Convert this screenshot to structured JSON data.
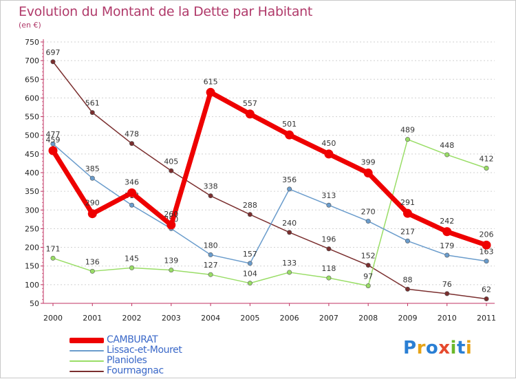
{
  "title": "Evolution du Montant de la Dette par Habitant",
  "subtitle": "(en €)",
  "logo": {
    "text": "Proxiti",
    "letter_colors": [
      "#2a7fd4",
      "#e6a317",
      "#2a7fd4",
      "#e64a2e",
      "#6ab82a",
      "#2a7fd4",
      "#e6a317"
    ]
  },
  "chart_data": {
    "type": "line",
    "title": "Evolution du Montant de la Dette par Habitant",
    "ylabel": "(en €)",
    "xlabel": "",
    "x": [
      "2000",
      "2001",
      "2002",
      "2003",
      "2004",
      "2005",
      "2006",
      "2007",
      "2008",
      "2009",
      "2010",
      "2011"
    ],
    "ylim": [
      50,
      750
    ],
    "yticks": [
      "50",
      "100",
      "150",
      "200",
      "250",
      "300",
      "350",
      "400",
      "450",
      "500",
      "550",
      "600",
      "650",
      "700",
      "750"
    ],
    "grid": "horizontal",
    "legend_position": "bottom-left",
    "series": [
      {
        "name": "Fourmagnac",
        "color": "#7a2e2e",
        "values": [
          697,
          561,
          478,
          405,
          338,
          288,
          240,
          196,
          152,
          88,
          76,
          62
        ]
      },
      {
        "name": "Planioles",
        "color": "#99dd66",
        "values": [
          171,
          136,
          145,
          139,
          127,
          104,
          133,
          118,
          97,
          489,
          448,
          412
        ]
      },
      {
        "name": "Lissac-et-Mouret",
        "color": "#6a9ccc",
        "values": [
          477,
          385,
          313,
          250,
          180,
          157,
          356,
          313,
          270,
          217,
          179,
          163
        ]
      },
      {
        "name": "CAMBURAT",
        "color": "#ee0000",
        "values": [
          459,
          290,
          346,
          260,
          615,
          557,
          501,
          450,
          399,
          291,
          242,
          206
        ]
      }
    ],
    "legend": [
      "CAMBURAT",
      "Lissac-et-Mouret",
      "Planioles",
      "Fourmagnac"
    ]
  }
}
